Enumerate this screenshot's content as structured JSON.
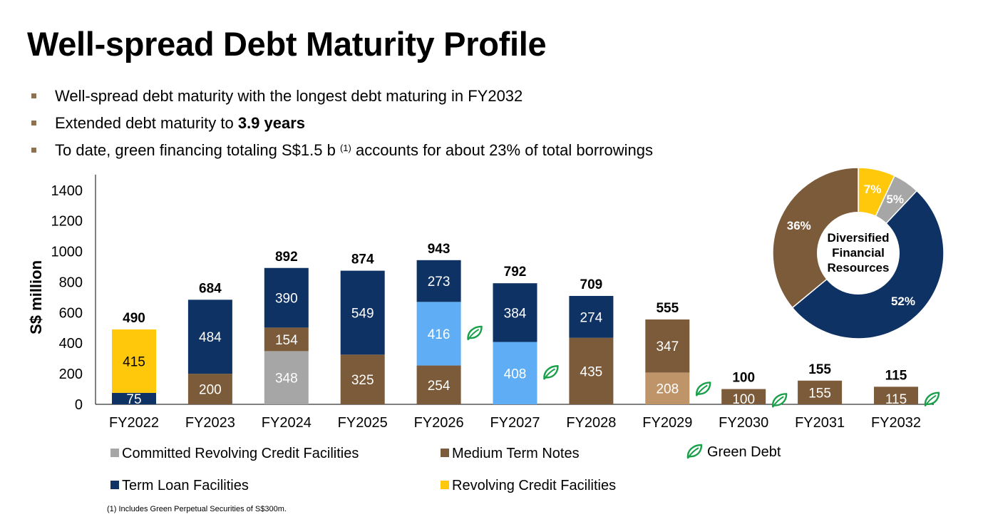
{
  "slide": {
    "title": "Well-spread Debt Maturity Profile",
    "bullets": [
      {
        "text": "Well-spread debt maturity with the longest debt maturing in FY2032"
      },
      {
        "prefix": "Extended debt maturity to ",
        "bold": "3.9 years"
      },
      {
        "prefix": "To date, green financing totaling S$1.5 b ",
        "sup": "(1)",
        "suffix": " accounts for about 23% of total borrowings"
      }
    ],
    "footnote": "(1)  Includes Green Perpetual Securities of S$300m."
  },
  "legend": {
    "committed_rcf": "Committed Revolving Credit Facilities",
    "mtn": "Medium Term Notes",
    "green": "Green Debt",
    "term_loan": "Term Loan Facilities",
    "rcf": "Revolving Credit Facilities"
  },
  "colors": {
    "term_loan": "#0f3264",
    "mtn": "#7c5b3a",
    "committed_rcf": "#a6a6a6",
    "rcf": "#ffc80a",
    "green_term_loan": "#5fadf5",
    "green_mtn": "#bf9468",
    "leaf": "#1aa04a"
  },
  "chart_data": [
    {
      "type": "bar",
      "stacked": true,
      "ylabel": "S$ million",
      "ylim": [
        0,
        1400
      ],
      "yticks": [
        0,
        200,
        400,
        600,
        800,
        1000,
        1200,
        1400
      ],
      "categories": [
        "FY2022",
        "FY2023",
        "FY2024",
        "FY2025",
        "FY2026",
        "FY2027",
        "FY2028",
        "FY2029",
        "FY2030",
        "FY2031",
        "FY2032"
      ],
      "totals": [
        490,
        684,
        892,
        874,
        943,
        792,
        709,
        555,
        100,
        155,
        115
      ],
      "bars": [
        {
          "segments": [
            {
              "value": 75,
              "kind": "term_loan"
            },
            {
              "value": 415,
              "kind": "rcf"
            }
          ]
        },
        {
          "segments": [
            {
              "value": 200,
              "kind": "mtn"
            },
            {
              "value": 484,
              "kind": "term_loan"
            }
          ]
        },
        {
          "segments": [
            {
              "value": 348,
              "kind": "committed_rcf"
            },
            {
              "value": 154,
              "kind": "mtn"
            },
            {
              "value": 390,
              "kind": "term_loan"
            }
          ]
        },
        {
          "segments": [
            {
              "value": 325,
              "kind": "mtn"
            },
            {
              "value": 549,
              "kind": "term_loan"
            }
          ]
        },
        {
          "segments": [
            {
              "value": 254,
              "kind": "mtn"
            },
            {
              "value": 416,
              "kind": "green_term_loan",
              "green": true
            },
            {
              "value": 273,
              "kind": "term_loan"
            }
          ]
        },
        {
          "segments": [
            {
              "value": 408,
              "kind": "green_term_loan",
              "green": true
            },
            {
              "value": 384,
              "kind": "term_loan"
            }
          ]
        },
        {
          "segments": [
            {
              "value": 435,
              "kind": "mtn"
            },
            {
              "value": 274,
              "kind": "term_loan"
            }
          ]
        },
        {
          "segments": [
            {
              "value": 208,
              "kind": "green_mtn",
              "green": true
            },
            {
              "value": 347,
              "kind": "mtn"
            }
          ]
        },
        {
          "segments": [
            {
              "value": 100,
              "kind": "mtn",
              "green": true
            }
          ]
        },
        {
          "segments": [
            {
              "value": 155,
              "kind": "mtn"
            }
          ]
        },
        {
          "segments": [
            {
              "value": 115,
              "kind": "mtn",
              "green": true
            }
          ]
        }
      ]
    },
    {
      "type": "pie",
      "center_label": [
        "Diversified",
        "Financial",
        "Resources"
      ],
      "slices": [
        {
          "label": "7%",
          "value": 7,
          "kind": "rcf"
        },
        {
          "label": "5%",
          "value": 5,
          "kind": "committed_rcf"
        },
        {
          "label": "52%",
          "value": 52,
          "kind": "term_loan"
        },
        {
          "label": "36%",
          "value": 36,
          "kind": "mtn"
        }
      ]
    }
  ]
}
